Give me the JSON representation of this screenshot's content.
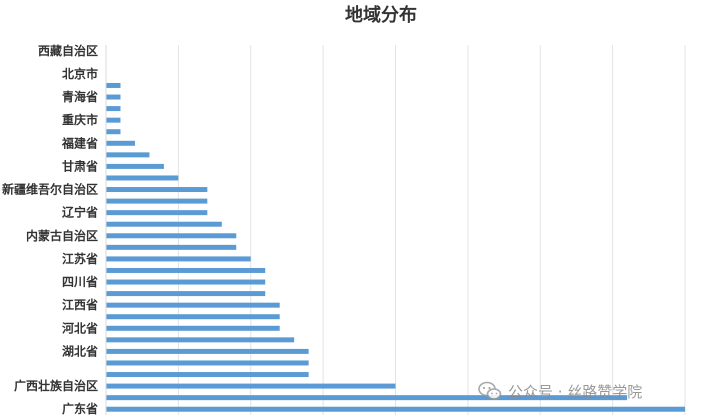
{
  "chart_data": {
    "type": "bar",
    "orientation": "horizontal",
    "title": "地域分布",
    "xlabel": "",
    "ylabel": "",
    "grid": true,
    "legend": "none",
    "xlim": [
      0,
      40
    ],
    "bar_color": "#5b9bd5",
    "categories": [
      "广东省",
      "",
      "广西壮族自治区",
      "",
      "",
      "湖北省",
      "",
      "河北省",
      "",
      "江西省",
      "",
      "四川省",
      "",
      "江苏省",
      "",
      "内蒙古自治区",
      "",
      "辽宁省",
      "",
      "新疆维吾尔自治区",
      "",
      "甘肃省",
      "",
      "福建省",
      "",
      "重庆市",
      "",
      "青海省",
      "",
      "北京市",
      "",
      "西藏自治区"
    ],
    "values": [
      40,
      36,
      20,
      14,
      14,
      14,
      13,
      12,
      12,
      12,
      11,
      11,
      11,
      10,
      9,
      9,
      8,
      7,
      7,
      7,
      5,
      4,
      3,
      2,
      1,
      1,
      1,
      1,
      1,
      0,
      0,
      0
    ]
  },
  "watermark": {
    "icon": "wechat-icon",
    "text": "公众号 · 丝路赞学院"
  }
}
